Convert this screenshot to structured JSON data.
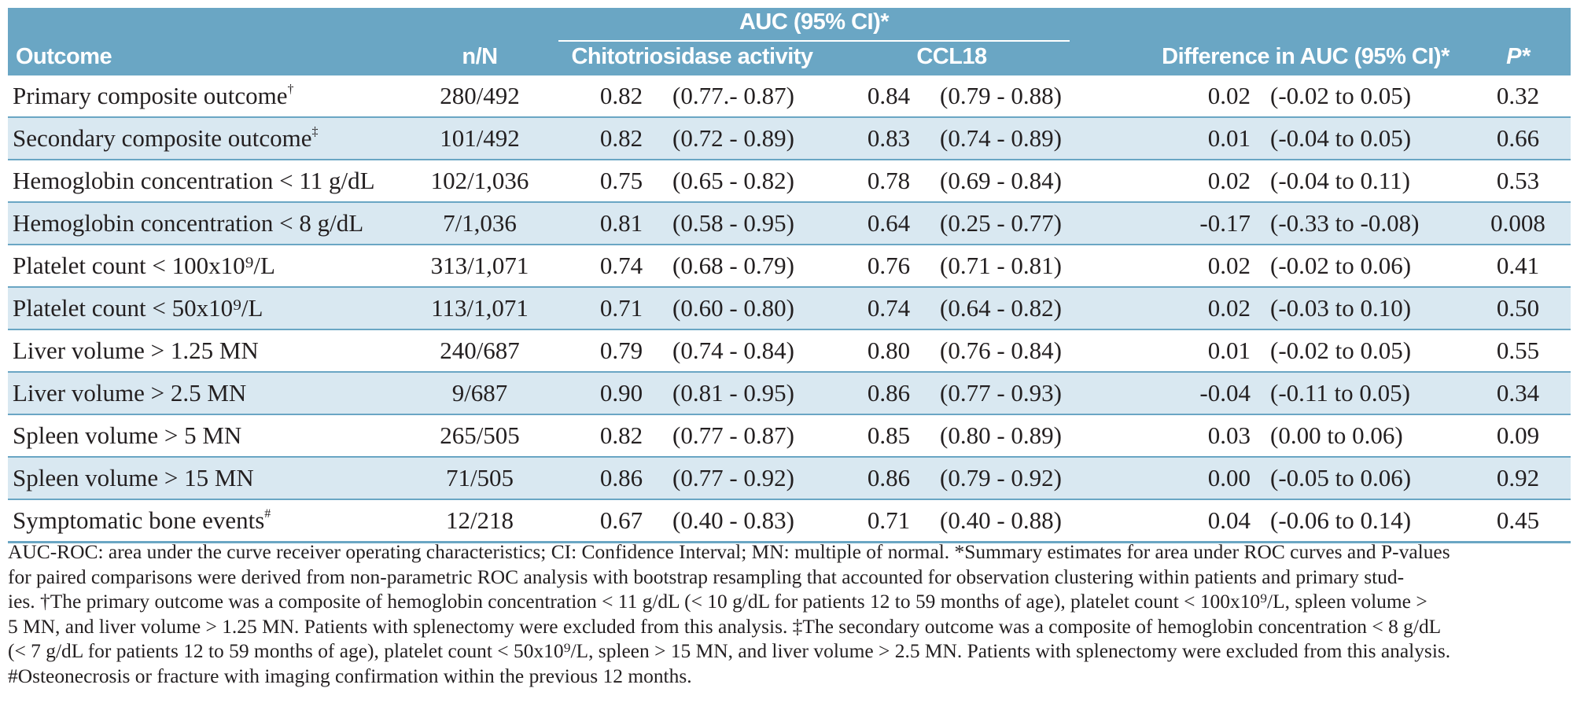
{
  "header": {
    "auc_group": "AUC (95% CI)*",
    "outcome": "Outcome",
    "n": "n/N",
    "chitotriosidase": "Chitotriosidase activity",
    "ccl18": "CCL18",
    "difference": "Difference in AUC (95% CI)*",
    "p": "P*"
  },
  "rows": [
    {
      "outcome": "Primary composite outcome",
      "mark": "†",
      "n": "280/492",
      "auc1": "0.82",
      "ci1": "(0.77.- 0.87)",
      "auc2": "0.84",
      "ci2": "(0.79 - 0.88)",
      "diff": "0.02",
      "dci": "(-0.02 to 0.05)",
      "p": "0.32"
    },
    {
      "outcome": "Secondary composite outcome",
      "mark": "‡",
      "n": "101/492",
      "auc1": "0.82",
      "ci1": "(0.72 - 0.89)",
      "auc2": "0.83",
      "ci2": "(0.74 - 0.89)",
      "diff": "0.01",
      "dci": "(-0.04 to 0.05)",
      "p": "0.66"
    },
    {
      "outcome": "Hemoglobin concentration < 11 g/dL",
      "mark": "",
      "n": "102/1,036",
      "auc1": "0.75",
      "ci1": "(0.65 - 0.82)",
      "auc2": "0.78",
      "ci2": "(0.69 - 0.84)",
      "diff": "0.02",
      "dci": "(-0.04 to 0.11)",
      "p": "0.53"
    },
    {
      "outcome": "Hemoglobin concentration < 8 g/dL",
      "mark": "",
      "n": "7/1,036",
      "auc1": "0.81",
      "ci1": "(0.58 - 0.95)",
      "auc2": "0.64",
      "ci2": "(0.25 - 0.77)",
      "diff": "-0.17",
      "dci": "(-0.33 to -0.08)",
      "p": "0.008"
    },
    {
      "outcome": "Platelet count < 100x10⁹/L",
      "mark": "",
      "n": "313/1,071",
      "auc1": "0.74",
      "ci1": "(0.68 - 0.79)",
      "auc2": "0.76",
      "ci2": "(0.71 - 0.81)",
      "diff": "0.02",
      "dci": "(-0.02 to 0.06)",
      "p": "0.41"
    },
    {
      "outcome": "Platelet count < 50x10⁹/L",
      "mark": "",
      "n": "113/1,071",
      "auc1": "0.71",
      "ci1": "(0.60 - 0.80)",
      "auc2": "0.74",
      "ci2": "(0.64 - 0.82)",
      "diff": "0.02",
      "dci": "(-0.03 to 0.10)",
      "p": "0.50"
    },
    {
      "outcome": "Liver volume > 1.25 MN",
      "mark": "",
      "n": "240/687",
      "auc1": "0.79",
      "ci1": "(0.74 - 0.84)",
      "auc2": "0.80",
      "ci2": "(0.76 - 0.84)",
      "diff": "0.01",
      "dci": "(-0.02 to 0.05)",
      "p": "0.55"
    },
    {
      "outcome": "Liver volume > 2.5 MN",
      "mark": "",
      "n": "9/687",
      "auc1": "0.90",
      "ci1": "(0.81 - 0.95)",
      "auc2": "0.86",
      "ci2": "(0.77 - 0.93)",
      "diff": "-0.04",
      "dci": "(-0.11 to 0.05)",
      "p": "0.34"
    },
    {
      "outcome": "Spleen volume > 5 MN",
      "mark": "",
      "n": "265/505",
      "auc1": "0.82",
      "ci1": "(0.77 - 0.87)",
      "auc2": "0.85",
      "ci2": "(0.80 - 0.89)",
      "diff": "0.03",
      "dci": "(0.00 to 0.06)",
      "p": "0.09"
    },
    {
      "outcome": "Spleen volume > 15 MN",
      "mark": "",
      "n": "71/505",
      "auc1": "0.86",
      "ci1": "(0.77 - 0.92)",
      "auc2": "0.86",
      "ci2": "(0.79 - 0.92)",
      "diff": "0.00",
      "dci": "(-0.05 to 0.06)",
      "p": "0.92"
    },
    {
      "outcome": "Symptomatic bone events",
      "mark": "#",
      "n": "12/218",
      "auc1": "0.67",
      "ci1": "(0.40 - 0.83)",
      "auc2": "0.71",
      "ci2": "(0.40 - 0.88)",
      "diff": "0.04",
      "dci": "(-0.06 to 0.14)",
      "p": "0.45"
    }
  ],
  "footnotes": [
    "AUC-ROC: area under the curve receiver operating characteristics;  CI: Confidence Interval; MN: multiple of normal. *Summary estimates for area under ROC curves and P-values",
    "for paired comparisons were derived from non-parametric ROC analysis with bootstrap resampling that accounted for observation clustering within patients and primary stud-",
    "ies. †The primary outcome was a composite of hemoglobin concentration < 11 g/dL (< 10 g/dL for patients 12 to 59 months of age), platelet count < 100x10⁹/L, spleen volume >",
    "5 MN, and liver volume > 1.25 MN. Patients with splenectomy were excluded from this analysis. ‡The secondary outcome was a composite of hemoglobin concentration < 8 g/dL",
    "(< 7 g/dL for patients 12 to 59 months of age), platelet count < 50x10⁹/L, spleen > 15 MN, and liver volume > 2.5 MN. Patients with splenectomy were excluded from this analysis.",
    "#Osteonecrosis or fracture with imaging confirmation within the previous 12 months."
  ]
}
